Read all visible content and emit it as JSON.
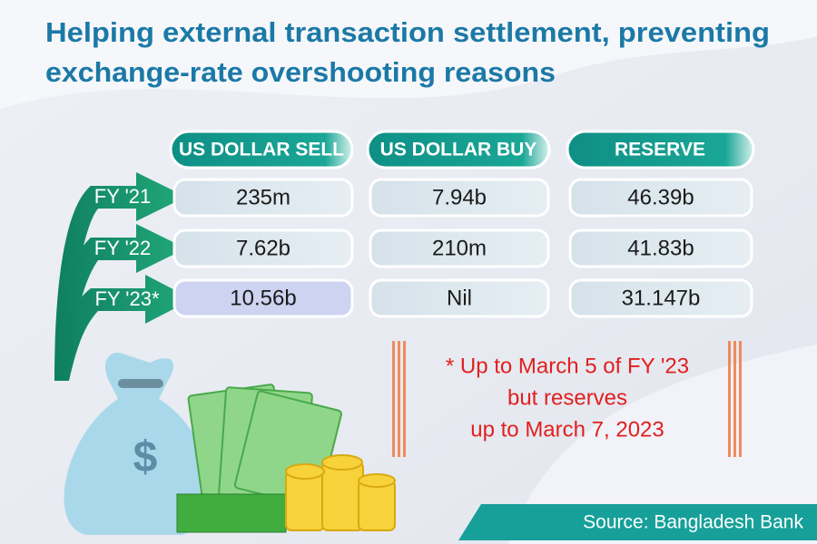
{
  "header": {
    "title_lines": [
      "Helping external transaction settlement, preventing",
      "exchange-rate overshooting reasons"
    ]
  },
  "table": {
    "columns": [
      "US DOLLAR SELL",
      "US DOLLAR BUY",
      "RESERVE"
    ],
    "rows": [
      {
        "label": "FY '21",
        "cells": [
          "235m",
          "7.94b",
          "46.39b"
        ]
      },
      {
        "label": "FY '22",
        "cells": [
          "7.62b",
          "210m",
          "41.83b"
        ]
      },
      {
        "label": "FY '23*",
        "cells": [
          "10.56b",
          "Nil",
          "31.147b"
        ]
      }
    ]
  },
  "note": {
    "lines": [
      "* Up to March 5 of FY '23",
      "but reserves",
      "up to March 7, 2023"
    ]
  },
  "source": "Source: Bangladesh Bank"
}
